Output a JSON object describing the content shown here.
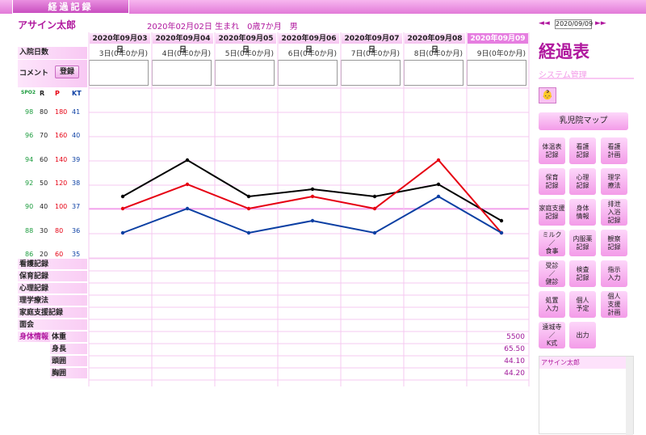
{
  "header": {
    "tab": "経過記録",
    "patient_name": "アサイン太郎",
    "birth_info": "2020年02月02日 生まれ　0歳7か月　男"
  },
  "dates": [
    "2020年09月03日",
    "2020年09月04日",
    "2020年09月05日",
    "2020年09月06日",
    "2020年09月07日",
    "2020年09月08日",
    "2020年09月09日"
  ],
  "selected_date": "2020年09月09日",
  "rows": {
    "admission_days_label": "入院日数",
    "comment_label": "コメント",
    "register_button": "登録"
  },
  "admission_days": [
    "3日(0年0か月)",
    "4日(0年0か月)",
    "5日(0年0か月)",
    "6日(0年0か月)",
    "7日(0年0か月)",
    "8日(0年0か月)",
    "9日(0年0か月)"
  ],
  "axis_headers": [
    "SPO2",
    "R",
    "P",
    "KT"
  ],
  "axis_rows": [
    [
      "98",
      "80",
      "180",
      "41"
    ],
    [
      "96",
      "70",
      "160",
      "40"
    ],
    [
      "94",
      "60",
      "140",
      "39"
    ],
    [
      "92",
      "50",
      "120",
      "38"
    ],
    [
      "90",
      "40",
      "100",
      "37"
    ],
    [
      "88",
      "30",
      "80",
      "36"
    ],
    [
      "86",
      "20",
      "60",
      "35"
    ]
  ],
  "record_sections": [
    "看護記録",
    "保育記録",
    "心理記録",
    "理学療法",
    "家庭支援記録",
    "面会"
  ],
  "body_info": {
    "label": "身体情報",
    "items": [
      {
        "name": "体重",
        "value": "5500"
      },
      {
        "name": "身長",
        "value": "65.50"
      },
      {
        "name": "頭囲",
        "value": "44.10"
      },
      {
        "name": "胸囲",
        "value": "44.20"
      }
    ]
  },
  "sidebar": {
    "date_value": "2020/09/09",
    "nav_prev": "◄◄",
    "nav_next": "►►",
    "title": "経過表",
    "subtitle": "システム管理",
    "map_button": "乳児院マップ",
    "buttons": [
      "体温表\n記録",
      "看護\n記録",
      "看護\n計画",
      "保育\n記録",
      "心理\n記録",
      "理学\n療法",
      "家庭支援\n記録",
      "身体\n情報",
      "排泄\n入浴\n記録",
      "ミルク\n／\n食事",
      "内服薬\n記録",
      "観察\n記録",
      "受診\n／\n健診",
      "検査\n記録",
      "指示\n入力",
      "処置\n入力",
      "個人\n予定",
      "個人\n支援\n計画",
      "遠城寺\n／\nK式",
      "出力"
    ],
    "patient_list_header": "アサイン太郎"
  },
  "chart_data": {
    "type": "line",
    "categories": [
      "2020年09月03日",
      "2020年09月04日",
      "2020年09月05日",
      "2020年09月06日",
      "2020年09月07日",
      "2020年09月08日",
      "2020年09月09日"
    ],
    "series": [
      {
        "name": "R",
        "color": "#000000",
        "values": [
          45,
          60,
          45,
          48,
          45,
          50,
          35
        ]
      },
      {
        "name": "P",
        "color": "#e60012",
        "values": [
          100,
          120,
          100,
          110,
          100,
          140,
          80
        ]
      },
      {
        "name": "KT",
        "color": "#0b3fa3",
        "values": [
          36,
          37,
          36,
          36.5,
          36,
          37.5,
          36
        ]
      }
    ]
  }
}
